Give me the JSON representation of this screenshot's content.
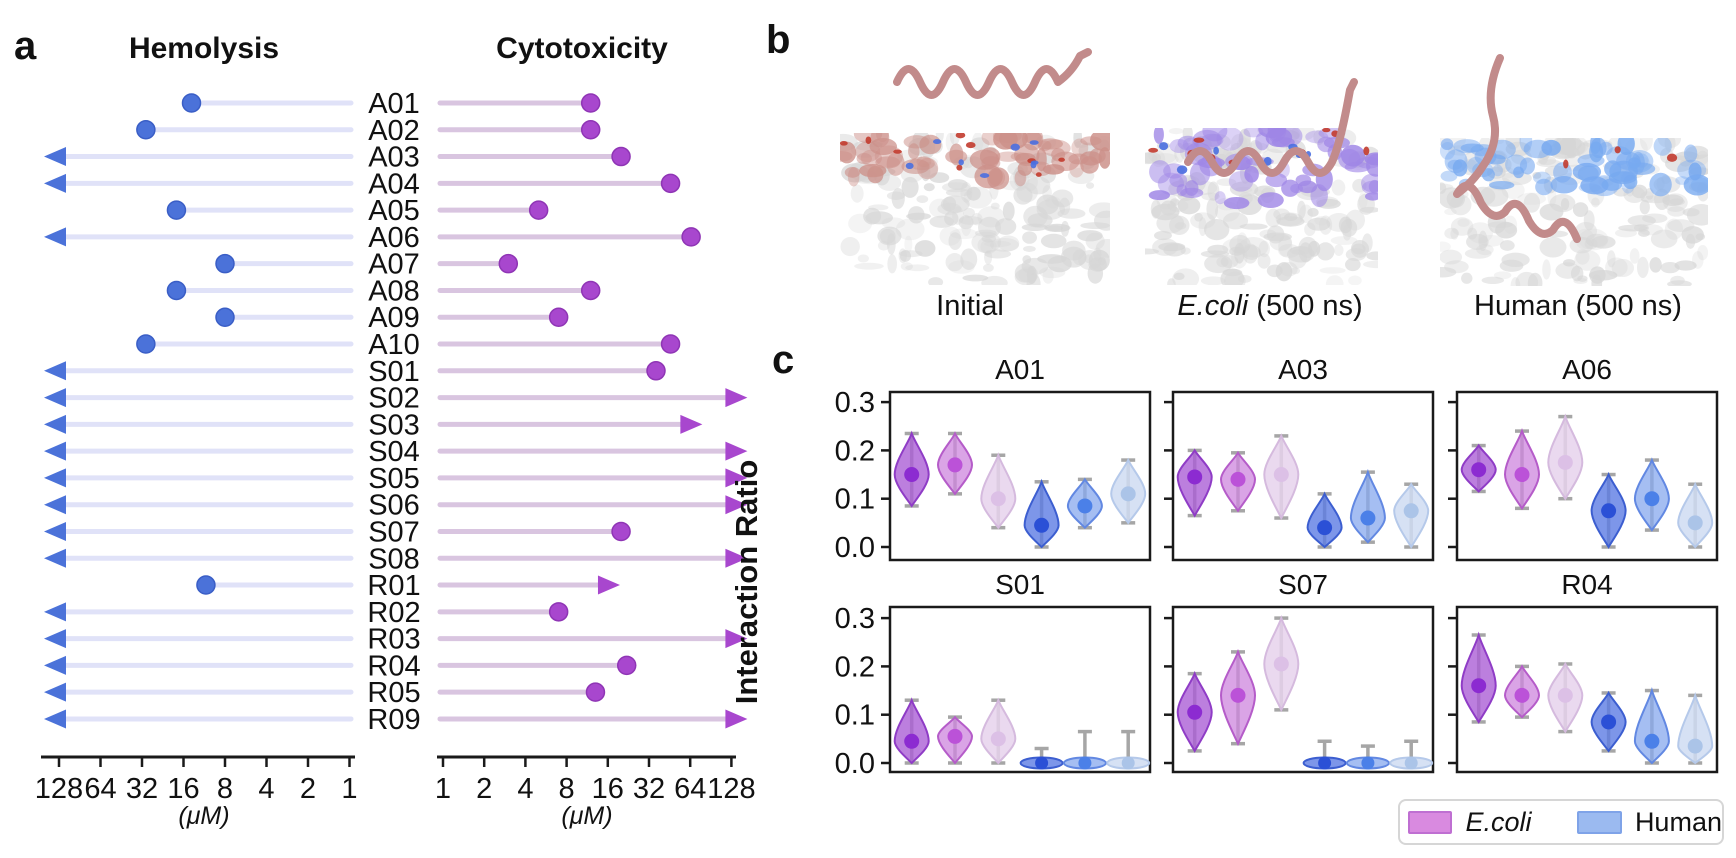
{
  "figure": {
    "panel_labels": [
      "a",
      "b",
      "c"
    ],
    "background": "#ffffff"
  },
  "chart_data": [
    {
      "id": "panel-a-dose-lollipop",
      "type": "lollipop",
      "unit": "(μM)",
      "left": {
        "title": "Hemolysis",
        "ticks": [
          128,
          64,
          32,
          16,
          8,
          4,
          2,
          1
        ],
        "scale": "log2-descending"
      },
      "right": {
        "title": "Cytotoxicity",
        "ticks": [
          1,
          2,
          4,
          8,
          16,
          32,
          64,
          128
        ],
        "scale": "log2-ascending"
      },
      "peptides": [
        "A01",
        "A02",
        "A03",
        "A04",
        "A05",
        "A06",
        "A07",
        "A08",
        "A09",
        "A10",
        "S01",
        "S02",
        "S03",
        "S04",
        "S05",
        "S06",
        "S07",
        "S08",
        "R01",
        "R02",
        "R03",
        "R04",
        "R05",
        "R09"
      ],
      "hemolysis": [
        {
          "value": 14,
          "censored": false
        },
        {
          "value": 30,
          "censored": false
        },
        {
          "value": 128,
          "censored": true
        },
        {
          "value": 128,
          "censored": true
        },
        {
          "value": 18,
          "censored": false
        },
        {
          "value": 128,
          "censored": true
        },
        {
          "value": 8,
          "censored": false
        },
        {
          "value": 18,
          "censored": false
        },
        {
          "value": 8,
          "censored": false
        },
        {
          "value": 30,
          "censored": false
        },
        {
          "value": 128,
          "censored": true
        },
        {
          "value": 128,
          "censored": true
        },
        {
          "value": 128,
          "censored": true
        },
        {
          "value": 128,
          "censored": true
        },
        {
          "value": 128,
          "censored": true
        },
        {
          "value": 128,
          "censored": true
        },
        {
          "value": 128,
          "censored": true
        },
        {
          "value": 128,
          "censored": true
        },
        {
          "value": 11,
          "censored": false
        },
        {
          "value": 128,
          "censored": true
        },
        {
          "value": 128,
          "censored": true
        },
        {
          "value": 128,
          "censored": true
        },
        {
          "value": 128,
          "censored": true
        },
        {
          "value": 128,
          "censored": true
        }
      ],
      "cytotoxicity": [
        {
          "value": 12,
          "censored": false
        },
        {
          "value": 12,
          "censored": false
        },
        {
          "value": 20,
          "censored": false
        },
        {
          "value": 46,
          "censored": false
        },
        {
          "value": 5,
          "censored": false
        },
        {
          "value": 65,
          "censored": false
        },
        {
          "value": 3,
          "censored": false
        },
        {
          "value": 12,
          "censored": false
        },
        {
          "value": 7,
          "censored": false
        },
        {
          "value": 46,
          "censored": false
        },
        {
          "value": 36,
          "censored": false
        },
        {
          "value": 128,
          "censored": true
        },
        {
          "value": 60,
          "censored": true
        },
        {
          "value": 128,
          "censored": true
        },
        {
          "value": 128,
          "censored": true
        },
        {
          "value": 128,
          "censored": true
        },
        {
          "value": 20,
          "censored": false
        },
        {
          "value": 128,
          "censored": true
        },
        {
          "value": 15,
          "censored": true
        },
        {
          "value": 7,
          "censored": false
        },
        {
          "value": 128,
          "censored": true
        },
        {
          "value": 22,
          "censored": false
        },
        {
          "value": 13,
          "censored": false
        },
        {
          "value": 128,
          "censored": true
        }
      ]
    },
    {
      "id": "panel-c-interaction-ratio-violins",
      "type": "violin",
      "ylabel": "Interaction Ratio",
      "ylim": [
        0,
        0.32
      ],
      "ytick_values": [
        0,
        0.1,
        0.2,
        0.3
      ],
      "ytick_labels": [
        "0.0",
        "0.1",
        "0.2",
        "0.3"
      ],
      "groups": [
        {
          "name": "E.coli",
          "replicates": 3
        },
        {
          "name": "Human",
          "replicates": 3
        }
      ],
      "subplots": [
        {
          "title": "A01",
          "ecoli": [
            {
              "median": 0.15,
              "min": 0.085,
              "max": 0.235
            },
            {
              "median": 0.17,
              "min": 0.11,
              "max": 0.235
            },
            {
              "median": 0.1,
              "min": 0.04,
              "max": 0.19
            }
          ],
          "human": [
            {
              "median": 0.045,
              "min": 0.0,
              "max": 0.135
            },
            {
              "median": 0.085,
              "min": 0.04,
              "max": 0.14
            },
            {
              "median": 0.11,
              "min": 0.05,
              "max": 0.18
            }
          ]
        },
        {
          "title": "A03",
          "ecoli": [
            {
              "median": 0.145,
              "min": 0.065,
              "max": 0.2
            },
            {
              "median": 0.14,
              "min": 0.075,
              "max": 0.195
            },
            {
              "median": 0.15,
              "min": 0.06,
              "max": 0.23
            }
          ],
          "human": [
            {
              "median": 0.04,
              "min": 0.0,
              "max": 0.11
            },
            {
              "median": 0.06,
              "min": 0.01,
              "max": 0.155
            },
            {
              "median": 0.075,
              "min": 0.0,
              "max": 0.13
            }
          ]
        },
        {
          "title": "A06",
          "ecoli": [
            {
              "median": 0.16,
              "min": 0.115,
              "max": 0.21
            },
            {
              "median": 0.15,
              "min": 0.08,
              "max": 0.24
            },
            {
              "median": 0.175,
              "min": 0.1,
              "max": 0.27
            }
          ],
          "human": [
            {
              "median": 0.075,
              "min": 0.0,
              "max": 0.15
            },
            {
              "median": 0.1,
              "min": 0.035,
              "max": 0.18
            },
            {
              "median": 0.05,
              "min": 0.0,
              "max": 0.13
            }
          ]
        },
        {
          "title": "S01",
          "ecoli": [
            {
              "median": 0.045,
              "min": 0.0,
              "max": 0.13
            },
            {
              "median": 0.055,
              "min": 0.0,
              "max": 0.095
            },
            {
              "median": 0.05,
              "min": 0.0,
              "max": 0.13
            }
          ],
          "human": [
            {
              "median": 0.0,
              "min": 0.0,
              "max": 0.03
            },
            {
              "median": 0.0,
              "min": 0.0,
              "max": 0.065
            },
            {
              "median": 0.0,
              "min": 0.0,
              "max": 0.065
            }
          ]
        },
        {
          "title": "S07",
          "ecoli": [
            {
              "median": 0.105,
              "min": 0.025,
              "max": 0.185
            },
            {
              "median": 0.14,
              "min": 0.04,
              "max": 0.23
            },
            {
              "median": 0.205,
              "min": 0.11,
              "max": 0.3
            }
          ],
          "human": [
            {
              "median": 0.0,
              "min": 0.0,
              "max": 0.045
            },
            {
              "median": 0.0,
              "min": 0.0,
              "max": 0.035
            },
            {
              "median": 0.0,
              "min": 0.0,
              "max": 0.045
            }
          ]
        },
        {
          "title": "R04",
          "ecoli": [
            {
              "median": 0.16,
              "min": 0.085,
              "max": 0.265
            },
            {
              "median": 0.14,
              "min": 0.095,
              "max": 0.2
            },
            {
              "median": 0.14,
              "min": 0.065,
              "max": 0.205
            }
          ],
          "human": [
            {
              "median": 0.085,
              "min": 0.025,
              "max": 0.145
            },
            {
              "median": 0.045,
              "min": 0.0,
              "max": 0.15
            },
            {
              "median": 0.035,
              "min": 0.0,
              "max": 0.14
            }
          ]
        }
      ]
    }
  ],
  "panel_b": {
    "snapshots": [
      {
        "caption_italic": "",
        "caption_rest": "Initial"
      },
      {
        "caption_italic": "E.coli",
        "caption_rest": " (500 ns)"
      },
      {
        "caption_italic": "",
        "caption_rest": "Human (500 ns)"
      }
    ],
    "colors": {
      "peptide": "#c28b8b",
      "membrane_base": "#d6d6d6",
      "initial_accent": "#cc9089",
      "ecoli_accent": "#9f86e6",
      "human_accent": "#77a9f0",
      "spot_red": "#c23b2e",
      "spot_blue": "#4a6fe0"
    }
  },
  "legend": {
    "entries": [
      {
        "label": "E.coli"
      },
      {
        "label": "Human"
      }
    ]
  },
  "colors": {
    "hemolysis_line": "#e0e2f8",
    "hemolysis_marker": "#4b72d9",
    "hemolysis_marker_edge": "#3a5ec6",
    "cytotoxicity_line": "#d9c5e0",
    "cytotoxicity_marker": "#a847ce",
    "cytotoxicity_marker_edge": "#8f35b5",
    "whisker": "#a6a6a6",
    "frame": "#1a1a1a",
    "ecoli_violins": [
      {
        "fill": "#ab5fd6",
        "edge": "#8f3cc6",
        "dot": "#8c2bd1",
        "opacity": 0.8
      },
      {
        "fill": "#cd85de",
        "edge": "#b55cc9",
        "dot": "#bb52d8",
        "opacity": 0.75
      },
      {
        "fill": "#e6d2ec",
        "edge": "#d5bade",
        "dot": "#dcc0e6",
        "opacity": 0.85
      }
    ],
    "human_violins": [
      {
        "fill": "#5c7ce4",
        "edge": "#3c5ed0",
        "dot": "#2b50d6",
        "opacity": 0.8
      },
      {
        "fill": "#87a8ee",
        "edge": "#6288e2",
        "dot": "#4b80e8",
        "opacity": 0.75
      },
      {
        "fill": "#cfdcf2",
        "edge": "#b5c9ea",
        "dot": "#abc4e8",
        "opacity": 0.85
      }
    ],
    "legend_ecoli_fill": "#d98ae0",
    "legend_ecoli_edge": "#bf6fd2",
    "legend_human_fill": "#9bbaf0",
    "legend_human_edge": "#7fa3e8"
  }
}
